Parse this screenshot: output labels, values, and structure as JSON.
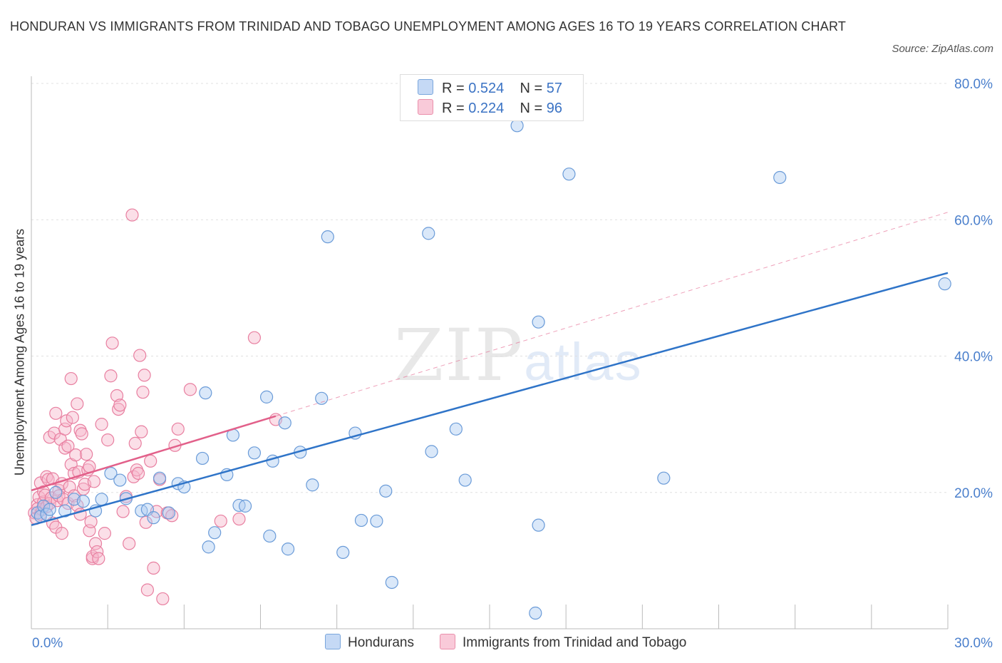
{
  "title": "HONDURAN VS IMMIGRANTS FROM TRINIDAD AND TOBAGO UNEMPLOYMENT AMONG AGES 16 TO 19 YEARS CORRELATION CHART",
  "source": "Source: ZipAtlas.com",
  "watermark": {
    "zip": "ZIP",
    "atlas": "atlas"
  },
  "legend": {
    "r_label": "R =",
    "n_label": "N =",
    "rows": [
      {
        "r": "0.524",
        "n": "57"
      },
      {
        "r": "0.224",
        "n": "96"
      }
    ]
  },
  "colors": {
    "blue_fill": "#aecbf2",
    "blue_edge": "#6a9bd8",
    "blue_line": "#2f74c8",
    "pink_fill": "#f6b8cc",
    "pink_edge": "#e87fa0",
    "pink_line": "#e2608a",
    "axis_text": "#4a7fcc",
    "grid": "#e0e0e0"
  },
  "chart_data": {
    "type": "scatter",
    "title": "HONDURAN VS IMMIGRANTS FROM TRINIDAD AND TOBAGO UNEMPLOYMENT AMONG AGES 16 TO 19 YEARS CORRELATION CHART",
    "xlabel": "",
    "ylabel": "Unemployment Among Ages 16 to 19 years",
    "xlim": [
      0,
      30
    ],
    "ylim": [
      0,
      80
    ],
    "x_tick_labels": [
      "0.0%",
      "30.0%"
    ],
    "y_ticks": [
      20,
      40,
      60,
      80
    ],
    "y_tick_labels": [
      "20.0%",
      "40.0%",
      "60.0%",
      "80.0%"
    ],
    "legend_position": "bottom",
    "series": [
      {
        "name": "Hondurans",
        "color": "blue",
        "trend": {
          "x": [
            0,
            30
          ],
          "y": [
            15.2,
            52.2
          ],
          "style": "solid"
        },
        "points": [
          [
            0.2,
            17.0
          ],
          [
            0.3,
            16.5
          ],
          [
            0.4,
            18.0
          ],
          [
            0.5,
            16.8
          ],
          [
            0.6,
            17.5
          ],
          [
            0.8,
            20.0
          ],
          [
            1.1,
            17.3
          ],
          [
            1.4,
            19.0
          ],
          [
            1.7,
            18.7
          ],
          [
            2.1,
            17.3
          ],
          [
            2.3,
            19.0
          ],
          [
            2.6,
            22.8
          ],
          [
            2.9,
            21.8
          ],
          [
            3.1,
            19.1
          ],
          [
            3.6,
            17.3
          ],
          [
            3.8,
            17.5
          ],
          [
            4.0,
            16.3
          ],
          [
            4.2,
            22.1
          ],
          [
            4.5,
            17.0
          ],
          [
            4.8,
            21.3
          ],
          [
            5.0,
            20.8
          ],
          [
            5.6,
            25.0
          ],
          [
            5.7,
            34.6
          ],
          [
            5.8,
            12.0
          ],
          [
            6.0,
            14.1
          ],
          [
            6.4,
            22.6
          ],
          [
            6.6,
            28.4
          ],
          [
            6.8,
            18.1
          ],
          [
            7.0,
            18.0
          ],
          [
            7.3,
            25.8
          ],
          [
            7.7,
            34.0
          ],
          [
            7.8,
            13.6
          ],
          [
            7.9,
            24.6
          ],
          [
            8.3,
            30.2
          ],
          [
            8.4,
            11.7
          ],
          [
            8.8,
            25.9
          ],
          [
            9.2,
            21.1
          ],
          [
            9.5,
            33.8
          ],
          [
            9.7,
            57.5
          ],
          [
            10.2,
            11.2
          ],
          [
            10.6,
            28.7
          ],
          [
            10.8,
            15.9
          ],
          [
            11.3,
            15.8
          ],
          [
            11.6,
            20.2
          ],
          [
            11.8,
            6.8
          ],
          [
            13.0,
            58.0
          ],
          [
            13.1,
            26.0
          ],
          [
            13.9,
            29.3
          ],
          [
            14.2,
            21.8
          ],
          [
            15.9,
            73.8
          ],
          [
            16.5,
            2.3
          ],
          [
            16.6,
            15.2
          ],
          [
            16.6,
            45.0
          ],
          [
            17.6,
            66.7
          ],
          [
            20.7,
            22.1
          ],
          [
            24.5,
            66.2
          ],
          [
            29.9,
            50.6
          ]
        ]
      },
      {
        "name": "Immigrants from Trinidad and Tobago",
        "color": "pink",
        "trend": {
          "x": [
            0,
            8.0
          ],
          "y": [
            20.3,
            31.2
          ],
          "style": "solid",
          "extended_to": [
            30,
            61.1
          ],
          "extended_style": "dashed"
        },
        "points": [
          [
            0.1,
            17.0
          ],
          [
            0.15,
            16.2
          ],
          [
            0.2,
            18.2
          ],
          [
            0.2,
            17.6
          ],
          [
            0.25,
            19.3
          ],
          [
            0.3,
            16.8
          ],
          [
            0.3,
            21.4
          ],
          [
            0.35,
            17.5
          ],
          [
            0.4,
            18.6
          ],
          [
            0.4,
            20.1
          ],
          [
            0.45,
            19.6
          ],
          [
            0.5,
            22.3
          ],
          [
            0.5,
            17.9
          ],
          [
            0.55,
            21.9
          ],
          [
            0.6,
            18.4
          ],
          [
            0.6,
            28.1
          ],
          [
            0.65,
            19.2
          ],
          [
            0.7,
            15.5
          ],
          [
            0.7,
            22.0
          ],
          [
            0.75,
            28.7
          ],
          [
            0.8,
            31.6
          ],
          [
            0.8,
            14.9
          ],
          [
            0.85,
            18.8
          ],
          [
            0.9,
            20.3
          ],
          [
            0.9,
            19.5
          ],
          [
            0.95,
            27.8
          ],
          [
            1.0,
            14.0
          ],
          [
            1.0,
            21.3
          ],
          [
            1.05,
            19.0
          ],
          [
            1.1,
            26.5
          ],
          [
            1.1,
            29.3
          ],
          [
            1.15,
            30.5
          ],
          [
            1.2,
            18.4
          ],
          [
            1.2,
            26.8
          ],
          [
            1.25,
            20.8
          ],
          [
            1.3,
            24.1
          ],
          [
            1.3,
            36.7
          ],
          [
            1.35,
            31.0
          ],
          [
            1.4,
            22.8
          ],
          [
            1.4,
            19.5
          ],
          [
            1.45,
            25.5
          ],
          [
            1.5,
            33.0
          ],
          [
            1.5,
            18.1
          ],
          [
            1.55,
            23.0
          ],
          [
            1.6,
            16.8
          ],
          [
            1.6,
            29.1
          ],
          [
            1.65,
            28.6
          ],
          [
            1.7,
            20.5
          ],
          [
            1.75,
            21.2
          ],
          [
            1.8,
            25.6
          ],
          [
            1.85,
            23.3
          ],
          [
            1.9,
            23.8
          ],
          [
            1.9,
            14.4
          ],
          [
            1.95,
            15.7
          ],
          [
            2.0,
            10.3
          ],
          [
            2.0,
            10.6
          ],
          [
            2.05,
            21.6
          ],
          [
            2.1,
            12.5
          ],
          [
            2.15,
            11.3
          ],
          [
            2.2,
            10.3
          ],
          [
            2.3,
            30.0
          ],
          [
            2.4,
            14.0
          ],
          [
            2.5,
            27.7
          ],
          [
            2.6,
            37.1
          ],
          [
            2.65,
            41.9
          ],
          [
            2.8,
            34.2
          ],
          [
            2.85,
            32.2
          ],
          [
            2.9,
            32.8
          ],
          [
            3.0,
            17.2
          ],
          [
            3.1,
            19.4
          ],
          [
            3.2,
            12.5
          ],
          [
            3.3,
            60.7
          ],
          [
            3.35,
            22.3
          ],
          [
            3.4,
            27.2
          ],
          [
            3.45,
            23.3
          ],
          [
            3.5,
            22.8
          ],
          [
            3.55,
            40.1
          ],
          [
            3.6,
            28.9
          ],
          [
            3.65,
            34.7
          ],
          [
            3.7,
            37.2
          ],
          [
            3.75,
            15.6
          ],
          [
            3.8,
            5.7
          ],
          [
            3.9,
            24.6
          ],
          [
            4.0,
            8.9
          ],
          [
            4.1,
            17.2
          ],
          [
            4.2,
            21.9
          ],
          [
            4.3,
            4.4
          ],
          [
            4.45,
            17.0
          ],
          [
            4.6,
            16.6
          ],
          [
            4.7,
            26.9
          ],
          [
            4.8,
            29.3
          ],
          [
            5.2,
            35.1
          ],
          [
            6.2,
            15.8
          ],
          [
            6.8,
            16.1
          ],
          [
            7.3,
            42.7
          ],
          [
            8.0,
            30.7
          ]
        ]
      }
    ]
  },
  "bottom_legend": [
    "Hondurans",
    "Immigrants from Trinidad and Tobago"
  ]
}
